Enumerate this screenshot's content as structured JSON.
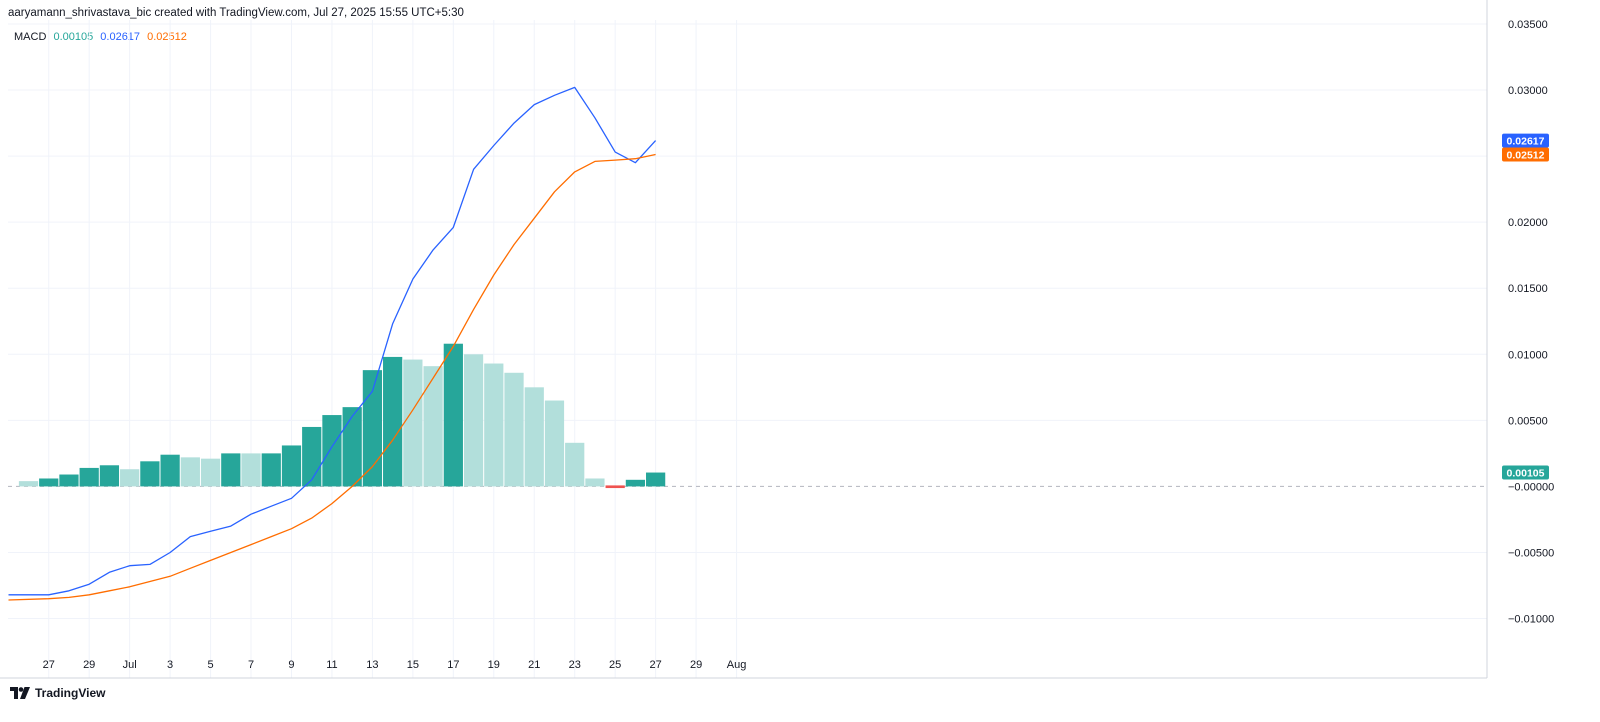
{
  "header": {
    "attribution": "aaryamann_shrivastava_bic created with TradingView.com, Jul 27, 2025 15:55 UTC+5:30"
  },
  "legend": {
    "indicator": "MACD",
    "histogram_value": "0.00105",
    "macd_value": "0.02617",
    "signal_value": "0.02512"
  },
  "footer": {
    "brand": "TradingView"
  },
  "colors": {
    "hist_strong_up": "#26a69a",
    "hist_weak_up": "#b2dfdb",
    "hist_down": "#ef5350",
    "macd_line": "#2962ff",
    "signal_line": "#ff6d00",
    "grid": "#f0f3fa"
  },
  "chart_data": {
    "type": "line",
    "indicator": "MACD",
    "x_labels": [
      "27",
      "29",
      "Jul",
      "3",
      "5",
      "7",
      "9",
      "11",
      "13",
      "15",
      "17",
      "19",
      "21",
      "23",
      "25",
      "27",
      "29",
      "Aug"
    ],
    "dates": [
      "Jun 26",
      "Jun 27",
      "Jun 28",
      "Jun 29",
      "Jun 30",
      "Jul 1",
      "Jul 2",
      "Jul 3",
      "Jul 4",
      "Jul 5",
      "Jul 6",
      "Jul 7",
      "Jul 8",
      "Jul 9",
      "Jul 10",
      "Jul 11",
      "Jul 12",
      "Jul 13",
      "Jul 14",
      "Jul 15",
      "Jul 16",
      "Jul 17",
      "Jul 18",
      "Jul 19",
      "Jul 20",
      "Jul 21",
      "Jul 22",
      "Jul 23",
      "Jul 24",
      "Jul 25",
      "Jul 26",
      "Jul 27"
    ],
    "y_ticks": [
      "0.03500",
      "0.03000",
      "0.02500",
      "0.02000",
      "0.01500",
      "0.01000",
      "0.00500",
      "−0.00000",
      "−0.00500",
      "−0.01000"
    ],
    "y_tick_values": [
      0.035,
      0.03,
      0.025,
      0.02,
      0.015,
      0.01,
      0.005,
      0,
      -0.005,
      -0.01
    ],
    "ylim": [
      -0.0145,
      0.0353
    ],
    "series": [
      {
        "name": "MACD",
        "values": [
          -0.0082,
          -0.0082,
          -0.0079,
          -0.0074,
          -0.0065,
          -0.006,
          -0.0059,
          -0.005,
          -0.0038,
          -0.0034,
          -0.003,
          -0.0021,
          -0.0015,
          -0.0009,
          0.0005,
          0.003,
          0.0053,
          0.0072,
          0.0123,
          0.0157,
          0.0179,
          0.0196,
          0.024,
          0.0258,
          0.0275,
          0.0289,
          0.0296,
          0.0302,
          0.0279,
          0.0253,
          0.0245,
          0.02617
        ]
      },
      {
        "name": "Signal",
        "values": [
          -0.0086,
          -0.0085,
          -0.0084,
          -0.0082,
          -0.0079,
          -0.0076,
          -0.0072,
          -0.0068,
          -0.0062,
          -0.0056,
          -0.005,
          -0.0044,
          -0.0038,
          -0.0032,
          -0.0024,
          -0.0013,
          0.0,
          0.0015,
          0.0035,
          0.0058,
          0.0082,
          0.0106,
          0.0134,
          0.016,
          0.0183,
          0.0203,
          0.0223,
          0.0238,
          0.0246,
          0.0247,
          0.0248,
          0.02512
        ]
      },
      {
        "name": "Histogram",
        "type": "bar",
        "values": [
          0.0004,
          0.0006,
          0.0009,
          0.0014,
          0.0016,
          0.0013,
          0.0019,
          0.0024,
          0.0022,
          0.0021,
          0.0025,
          0.0025,
          0.0025,
          0.0031,
          0.0045,
          0.0054,
          0.006,
          0.0088,
          0.0098,
          0.0096,
          0.0091,
          0.0108,
          0.01,
          0.0093,
          0.0086,
          0.0075,
          0.0065,
          0.0033,
          0.0006,
          -0.0002,
          0.0005,
          0.00105
        ],
        "colors": [
          "weak",
          "strong",
          "strong",
          "strong",
          "strong",
          "weak",
          "strong",
          "strong",
          "weak",
          "weak",
          "strong",
          "weak",
          "strong",
          "strong",
          "strong",
          "strong",
          "strong",
          "strong",
          "strong",
          "weak",
          "weak",
          "strong",
          "weak",
          "weak",
          "weak",
          "weak",
          "weak",
          "weak",
          "weak",
          "down",
          "strong",
          "strong"
        ]
      }
    ],
    "price_badges": [
      {
        "label": "0.02617",
        "value": 0.02617,
        "color": "#2962ff"
      },
      {
        "label": "0.02512",
        "value": 0.02512,
        "color": "#ff6d00"
      },
      {
        "label": "0.00105",
        "value": 0.00105,
        "color": "#26a69a"
      }
    ],
    "grid": true
  }
}
